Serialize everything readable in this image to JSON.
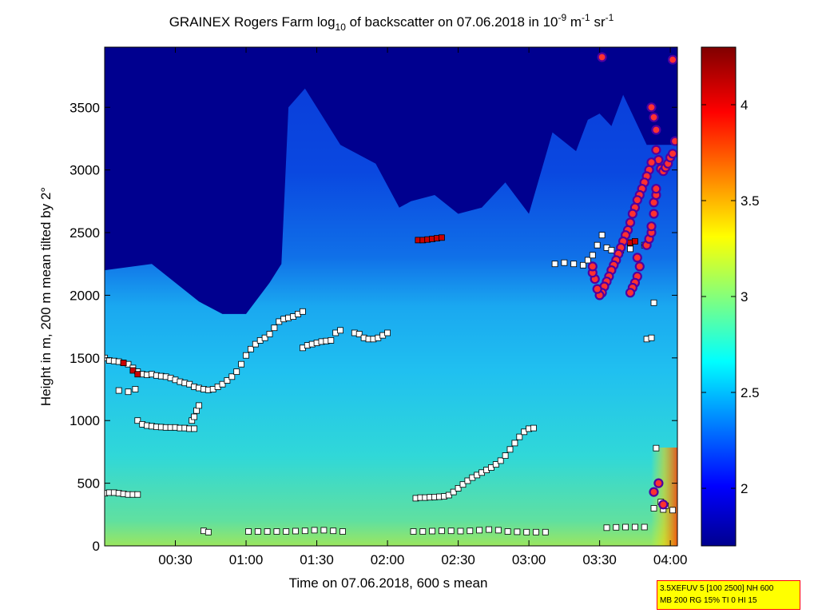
{
  "chart_data": {
    "type": "heatmap",
    "title": {
      "prefix": "GRAINEX Rogers Farm log",
      "log_sub": "10",
      "middle": " of backscatter on 07.06.2018 in 10",
      "exp1": "-9",
      "unit1": " m",
      "exp2": "-1",
      "unit2": " sr",
      "exp3": "-1"
    },
    "xlabel": "Time on 07.06.2018, 600 s mean",
    "ylabel": "Height in m, 200 m mean tilted by 2°",
    "xlim_minutes": [
      0,
      243
    ],
    "ylim": [
      0,
      3980
    ],
    "x_ticks": [
      {
        "minutes": 30,
        "label": "00:30"
      },
      {
        "minutes": 60,
        "label": "01:00"
      },
      {
        "minutes": 90,
        "label": "01:30"
      },
      {
        "minutes": 120,
        "label": "02:00"
      },
      {
        "minutes": 150,
        "label": "02:30"
      },
      {
        "minutes": 180,
        "label": "03:00"
      },
      {
        "minutes": 210,
        "label": "03:30"
      },
      {
        "minutes": 240,
        "label": "04:00"
      }
    ],
    "y_ticks": [
      0,
      500,
      1000,
      1500,
      2000,
      2500,
      3000,
      3500
    ],
    "colorbar": {
      "range": [
        1.7,
        4.3
      ],
      "ticks": [
        2,
        2.5,
        3,
        3.5,
        4
      ],
      "colormap": [
        "#00008f",
        "#0000ff",
        "#00ffff",
        "#ffff00",
        "#ff0000",
        "#800000"
      ]
    },
    "upper_boundary_m": [
      [
        0,
        2200
      ],
      [
        20,
        2250
      ],
      [
        40,
        1950
      ],
      [
        50,
        1850
      ],
      [
        60,
        1850
      ],
      [
        70,
        2100
      ],
      [
        75,
        2250
      ],
      [
        78,
        3500
      ],
      [
        85,
        3650
      ],
      [
        100,
        3200
      ],
      [
        115,
        3050
      ],
      [
        125,
        2700
      ],
      [
        130,
        2750
      ],
      [
        140,
        2800
      ],
      [
        150,
        2650
      ],
      [
        160,
        2700
      ],
      [
        170,
        2900
      ],
      [
        180,
        2650
      ],
      [
        190,
        3300
      ],
      [
        200,
        3150
      ],
      [
        205,
        3400
      ],
      [
        210,
        3450
      ],
      [
        215,
        3350
      ],
      [
        220,
        3600
      ],
      [
        230,
        3200
      ],
      [
        243,
        3200
      ]
    ],
    "square_markers": [
      {
        "series": "layer_a",
        "color": "#ffffff",
        "points": [
          [
            0,
            1500
          ],
          [
            2,
            1480
          ],
          [
            4,
            1475
          ],
          [
            6,
            1470
          ],
          [
            8,
            1460
          ],
          [
            10,
            1450
          ],
          [
            12,
            1420
          ],
          [
            14,
            1390
          ],
          [
            16,
            1370
          ],
          [
            18,
            1365
          ],
          [
            20,
            1370
          ],
          [
            22,
            1360
          ],
          [
            24,
            1355
          ],
          [
            26,
            1350
          ],
          [
            28,
            1340
          ],
          [
            30,
            1325
          ],
          [
            32,
            1310
          ],
          [
            34,
            1300
          ],
          [
            36,
            1290
          ],
          [
            38,
            1270
          ],
          [
            40,
            1260
          ],
          [
            42,
            1250
          ],
          [
            44,
            1245
          ],
          [
            46,
            1250
          ],
          [
            48,
            1270
          ],
          [
            50,
            1290
          ],
          [
            52,
            1320
          ],
          [
            54,
            1350
          ],
          [
            56,
            1390
          ],
          [
            58,
            1450
          ],
          [
            60,
            1520
          ],
          [
            62,
            1570
          ],
          [
            64,
            1610
          ],
          [
            66,
            1640
          ],
          [
            68,
            1660
          ],
          [
            70,
            1690
          ],
          [
            72,
            1740
          ],
          [
            74,
            1790
          ],
          [
            76,
            1810
          ],
          [
            78,
            1820
          ],
          [
            80,
            1830
          ],
          [
            82,
            1850
          ],
          [
            84,
            1870
          ]
        ]
      },
      {
        "series": "layer_a",
        "color": "#ffffff",
        "points": [
          [
            6,
            1240
          ],
          [
            10,
            1230
          ],
          [
            13,
            1250
          ],
          [
            37,
            1000
          ],
          [
            38,
            1030
          ],
          [
            39,
            1080
          ],
          [
            40,
            1120
          ]
        ]
      },
      {
        "series": "layer_b",
        "color": "#ffffff",
        "points": [
          [
            14,
            1000
          ],
          [
            16,
            970
          ],
          [
            18,
            960
          ],
          [
            20,
            955
          ],
          [
            22,
            950
          ],
          [
            24,
            948
          ],
          [
            26,
            945
          ],
          [
            28,
            945
          ],
          [
            30,
            945
          ],
          [
            32,
            940
          ],
          [
            34,
            940
          ],
          [
            36,
            935
          ],
          [
            38,
            935
          ]
        ]
      },
      {
        "series": "layer_c",
        "color": "#ffffff",
        "points": [
          [
            84,
            1580
          ],
          [
            86,
            1600
          ],
          [
            88,
            1610
          ],
          [
            90,
            1620
          ],
          [
            92,
            1630
          ],
          [
            94,
            1635
          ],
          [
            96,
            1640
          ],
          [
            98,
            1700
          ],
          [
            100,
            1720
          ],
          [
            106,
            1700
          ],
          [
            108,
            1690
          ],
          [
            110,
            1660
          ],
          [
            112,
            1650
          ],
          [
            114,
            1650
          ],
          [
            116,
            1660
          ],
          [
            118,
            1680
          ],
          [
            120,
            1700
          ]
        ]
      },
      {
        "series": "layer_d",
        "color": "#ffffff",
        "points": [
          [
            132,
            380
          ],
          [
            134,
            385
          ],
          [
            136,
            385
          ],
          [
            138,
            388
          ],
          [
            140,
            390
          ],
          [
            142,
            392
          ],
          [
            144,
            395
          ],
          [
            146,
            405
          ],
          [
            148,
            430
          ],
          [
            150,
            460
          ],
          [
            152,
            490
          ],
          [
            154,
            520
          ],
          [
            156,
            545
          ],
          [
            158,
            565
          ],
          [
            160,
            585
          ],
          [
            162,
            605
          ],
          [
            164,
            625
          ],
          [
            166,
            650
          ],
          [
            168,
            680
          ],
          [
            170,
            720
          ],
          [
            172,
            770
          ],
          [
            174,
            820
          ],
          [
            176,
            870
          ],
          [
            178,
            910
          ],
          [
            180,
            935
          ],
          [
            182,
            940
          ]
        ]
      },
      {
        "series": "layer_e",
        "color": "#ffffff",
        "points": [
          [
            0,
            420
          ],
          [
            2,
            425
          ],
          [
            4,
            425
          ],
          [
            6,
            420
          ],
          [
            8,
            415
          ],
          [
            10,
            410
          ],
          [
            12,
            410
          ],
          [
            14,
            410
          ],
          [
            42,
            120
          ],
          [
            44,
            110
          ]
        ]
      },
      {
        "series": "layer_f",
        "color": "#ffffff",
        "points": [
          [
            61,
            115
          ],
          [
            65,
            115
          ],
          [
            69,
            115
          ],
          [
            73,
            115
          ],
          [
            77,
            115
          ],
          [
            81,
            118
          ],
          [
            85,
            120
          ],
          [
            89,
            125
          ],
          [
            93,
            125
          ],
          [
            97,
            120
          ],
          [
            101,
            115
          ],
          [
            131,
            115
          ],
          [
            135,
            115
          ],
          [
            139,
            118
          ],
          [
            143,
            120
          ],
          [
            147,
            120
          ],
          [
            151,
            118
          ],
          [
            155,
            120
          ],
          [
            159,
            125
          ],
          [
            163,
            130
          ],
          [
            167,
            125
          ],
          [
            171,
            115
          ],
          [
            175,
            112
          ],
          [
            179,
            110
          ],
          [
            183,
            110
          ],
          [
            187,
            110
          ],
          [
            213,
            145
          ],
          [
            217,
            148
          ],
          [
            221,
            150
          ],
          [
            225,
            150
          ],
          [
            229,
            150
          ],
          [
            233,
            300
          ],
          [
            237,
            290
          ],
          [
            241,
            285
          ]
        ]
      },
      {
        "series": "layer_g",
        "color": "#ffffff",
        "points": [
          [
            191,
            2250
          ],
          [
            195,
            2260
          ],
          [
            199,
            2250
          ],
          [
            203,
            2240
          ],
          [
            205,
            2280
          ],
          [
            207,
            2320
          ],
          [
            209,
            2400
          ],
          [
            211,
            2480
          ],
          [
            213,
            2380
          ],
          [
            215,
            2360
          ],
          [
            219,
            2360
          ],
          [
            223,
            2370
          ],
          [
            229,
            2400
          ],
          [
            230,
            1650
          ],
          [
            232,
            1660
          ],
          [
            233,
            1940
          ],
          [
            234,
            780
          ],
          [
            236,
            350
          ],
          [
            238,
            320
          ]
        ]
      },
      {
        "series": "red_layer",
        "color": "#cc0000",
        "points": [
          [
            133,
            2440
          ],
          [
            135,
            2440
          ],
          [
            137,
            2445
          ],
          [
            139,
            2450
          ],
          [
            141,
            2455
          ],
          [
            143,
            2460
          ],
          [
            8,
            1460
          ],
          [
            12,
            1400
          ],
          [
            14,
            1370
          ],
          [
            223,
            2420
          ],
          [
            225,
            2430
          ]
        ]
      }
    ],
    "circle_markers": [
      [
        211,
        3900
      ],
      [
        241,
        3880
      ],
      [
        232,
        3500
      ],
      [
        233,
        3420
      ],
      [
        234,
        3320
      ],
      [
        234,
        3160
      ],
      [
        235,
        3080
      ],
      [
        236,
        3010
      ],
      [
        237,
        2990
      ],
      [
        238,
        3020
      ],
      [
        239,
        3050
      ],
      [
        240,
        3100
      ],
      [
        241,
        3130
      ],
      [
        242,
        3230
      ],
      [
        232,
        3060
      ],
      [
        231,
        3000
      ],
      [
        230,
        2950
      ],
      [
        229,
        2900
      ],
      [
        228,
        2850
      ],
      [
        227,
        2800
      ],
      [
        226,
        2760
      ],
      [
        225,
        2700
      ],
      [
        224,
        2650
      ],
      [
        223,
        2580
      ],
      [
        222,
        2520
      ],
      [
        221,
        2480
      ],
      [
        220,
        2430
      ],
      [
        219,
        2380
      ],
      [
        218,
        2330
      ],
      [
        217,
        2280
      ],
      [
        216,
        2240
      ],
      [
        215,
        2200
      ],
      [
        214,
        2150
      ],
      [
        213,
        2110
      ],
      [
        212,
        2070
      ],
      [
        211,
        2020
      ],
      [
        210,
        2000
      ],
      [
        209,
        2050
      ],
      [
        208,
        2130
      ],
      [
        207,
        2180
      ],
      [
        207,
        2230
      ],
      [
        226,
        2300
      ],
      [
        227,
        2230
      ],
      [
        226,
        2150
      ],
      [
        225,
        2100
      ],
      [
        224,
        2060
      ],
      [
        223,
        2020
      ],
      [
        230,
        2400
      ],
      [
        231,
        2450
      ],
      [
        232,
        2500
      ],
      [
        232,
        2550
      ],
      [
        233,
        2650
      ],
      [
        233,
        2740
      ],
      [
        234,
        2800
      ],
      [
        234,
        2850
      ],
      [
        233,
        430
      ],
      [
        235,
        500
      ],
      [
        237,
        330
      ]
    ]
  },
  "info_box": {
    "line1": "3.5XEFUV 5 [100 2500] NH 600",
    "line2": "MB 200 RG 15% TI 0 HI 15"
  }
}
